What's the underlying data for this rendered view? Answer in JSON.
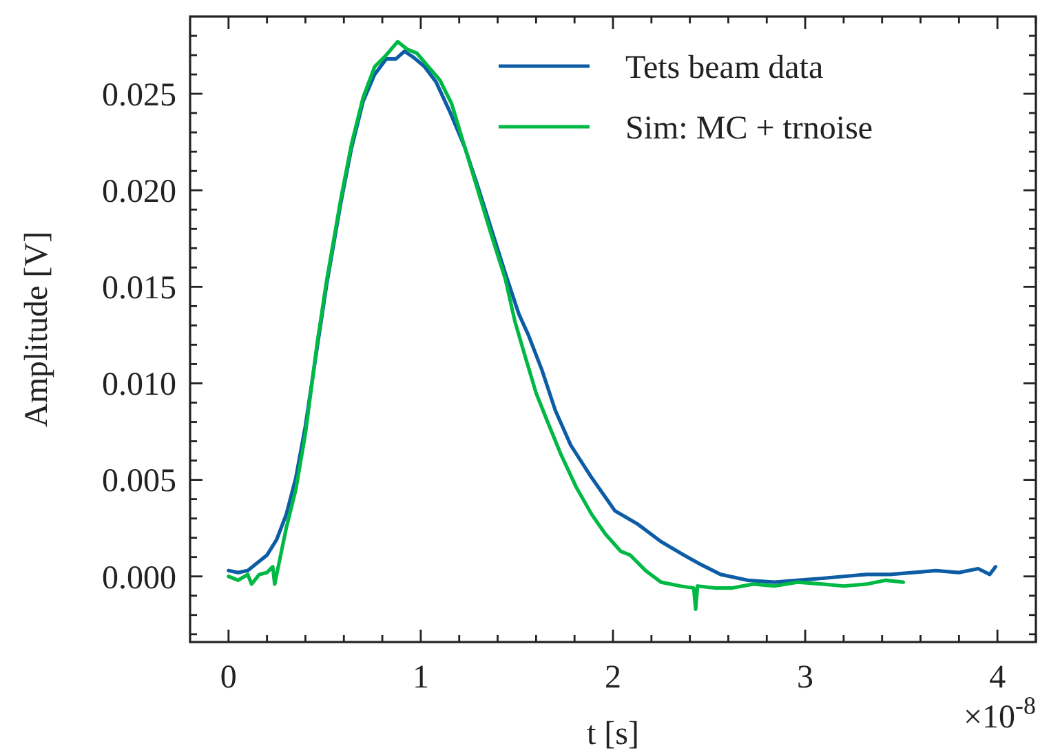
{
  "chart_data": {
    "type": "line",
    "xlabel": "t [s]",
    "ylabel": "Amplitude [V]",
    "annotations": [
      "×10$^{-8}$"
    ],
    "xlim": [
      -0.2,
      4.2
    ],
    "ylim": [
      -0.0034,
      0.029
    ],
    "xticks": [
      0,
      {
        "value": 0.2,
        "label": null
      },
      {
        "value": 0.4,
        "label": null
      },
      {
        "value": 0.6,
        "label": null
      },
      {
        "value": 0.8,
        "label": null
      },
      1,
      {
        "value": 1.2,
        "label": null
      },
      {
        "value": 1.4,
        "label": null
      },
      {
        "value": 1.6,
        "label": null
      },
      {
        "value": 1.8,
        "label": null
      },
      2,
      {
        "value": 2.2,
        "label": null
      },
      {
        "value": 2.4,
        "label": null
      },
      {
        "value": 2.6,
        "label": null
      },
      {
        "value": 2.8,
        "label": null
      },
      3,
      {
        "value": 3.2,
        "label": null
      },
      {
        "value": 3.4,
        "label": null
      },
      {
        "value": 3.6,
        "label": null
      },
      {
        "value": 3.8,
        "label": null
      },
      4,
      {
        "value": 4.2,
        "label": null
      }
    ],
    "yticks": [
      {
        "value": -0.003,
        "label": null
      },
      {
        "value": -0.002,
        "label": null
      },
      {
        "value": -0.001,
        "label": null
      },
      {
        "value": 0,
        "label": "0.000"
      },
      {
        "value": 0.001,
        "label": null
      },
      {
        "value": 0.002,
        "label": null
      },
      {
        "value": 0.003,
        "label": null
      },
      {
        "value": 0.004,
        "label": null
      },
      {
        "value": 0.005,
        "label": "0.005"
      },
      {
        "value": 0.006,
        "label": null
      },
      {
        "value": 0.007,
        "label": null
      },
      {
        "value": 0.008,
        "label": null
      },
      {
        "value": 0.009,
        "label": null
      },
      {
        "value": 0.01,
        "label": "0.010"
      },
      {
        "value": 0.011,
        "label": null
      },
      {
        "value": 0.012,
        "label": null
      },
      {
        "value": 0.013,
        "label": null
      },
      {
        "value": 0.014,
        "label": null
      },
      {
        "value": 0.015,
        "label": "0.015"
      },
      {
        "value": 0.016,
        "label": null
      },
      {
        "value": 0.017,
        "label": null
      },
      {
        "value": 0.018,
        "label": null
      },
      {
        "value": 0.019,
        "label": null
      },
      {
        "value": 0.02,
        "label": "0.020"
      },
      {
        "value": 0.021,
        "label": null
      },
      {
        "value": 0.022,
        "label": null
      },
      {
        "value": 0.023,
        "label": null
      },
      {
        "value": 0.024,
        "label": null
      },
      {
        "value": 0.025,
        "label": "0.025"
      },
      {
        "value": 0.026,
        "label": null
      },
      {
        "value": 0.027,
        "label": null
      },
      {
        "value": 0.028,
        "label": null
      }
    ],
    "legend": "top right",
    "grid": false,
    "line_style": "solid",
    "marker": "none",
    "series": [
      {
        "name": "Tets beam data",
        "color": "#0c5da5",
        "x": [
          0,
          0.05,
          0.1,
          0.15,
          0.2,
          0.25,
          0.3,
          0.35,
          0.4,
          0.46,
          0.51,
          0.585,
          0.64,
          0.7,
          0.76,
          0.82,
          0.87,
          0.915,
          0.96,
          1.02,
          1.08,
          1.15,
          1.23,
          1.3,
          1.37,
          1.44,
          1.51,
          1.56,
          1.63,
          1.7,
          1.78,
          1.89,
          2.01,
          2.13,
          2.25,
          2.37,
          2.46,
          2.56,
          2.7,
          2.84,
          2.96,
          3.09,
          3.2,
          3.32,
          3.44,
          3.56,
          3.68,
          3.8,
          3.9,
          3.96,
          3.99
        ],
        "values": [
          0.0003,
          0.0002,
          0.0003,
          0.0007,
          0.0011,
          0.0019,
          0.0032,
          0.0051,
          0.0078,
          0.0118,
          0.0151,
          0.0194,
          0.0222,
          0.0246,
          0.026,
          0.0268,
          0.0268,
          0.0272,
          0.0269,
          0.0264,
          0.0256,
          0.0241,
          0.0222,
          0.0201,
          0.0179,
          0.0157,
          0.0136,
          0.0125,
          0.0107,
          0.0086,
          0.0068,
          0.0051,
          0.0034,
          0.0027,
          0.0018,
          0.0011,
          0.0006,
          0.0001,
          -0.0002,
          -0.0003,
          -0.0002,
          -0.0001,
          0,
          0.0001,
          0.0001,
          0.0002,
          0.0003,
          0.0002,
          0.0004,
          0.0001,
          0.0005
        ]
      },
      {
        "name": "Sim: MC + trnoise",
        "color": "#00b945",
        "x": [
          0,
          0.05,
          0.1,
          0.12,
          0.16,
          0.2,
          0.23,
          0.24,
          0.3,
          0.35,
          0.4,
          0.46,
          0.51,
          0.585,
          0.64,
          0.7,
          0.76,
          0.82,
          0.88,
          0.93,
          0.98,
          1.04,
          1.1,
          1.16,
          1.23,
          1.3,
          1.37,
          1.44,
          1.49,
          1.54,
          1.6,
          1.66,
          1.73,
          1.81,
          1.89,
          1.96,
          2.04,
          2.09,
          2.17,
          2.25,
          2.35,
          2.42,
          2.43,
          2.44,
          2.53,
          2.62,
          2.73,
          2.84,
          2.96,
          3.09,
          3.2,
          3.32,
          3.42,
          3.51
        ],
        "values": [
          0,
          -0.0002,
          0.0001,
          -0.0004,
          0.0001,
          0.0002,
          0.0005,
          -0.0004,
          0.0025,
          0.0045,
          0.0074,
          0.012,
          0.0153,
          0.0196,
          0.0224,
          0.0248,
          0.0264,
          0.027,
          0.0277,
          0.0273,
          0.0271,
          0.0264,
          0.0257,
          0.0245,
          0.0222,
          0.0199,
          0.0176,
          0.0154,
          0.0132,
          0.0115,
          0.0095,
          0.008,
          0.0063,
          0.0046,
          0.0032,
          0.0022,
          0.0013,
          0.0011,
          0.0003,
          -0.0003,
          -0.0005,
          -0.0006,
          -0.0017,
          -0.0005,
          -0.0006,
          -0.0006,
          -0.0004,
          -0.0005,
          -0.0003,
          -0.0004,
          -0.0005,
          -0.0004,
          -0.0002,
          -0.0003
        ]
      }
    ]
  }
}
